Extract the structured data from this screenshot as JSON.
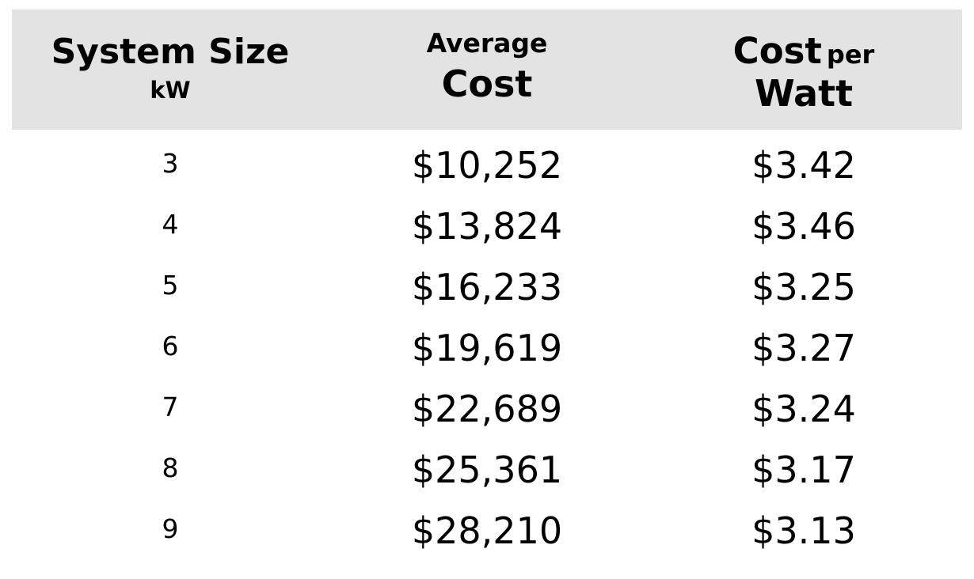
{
  "chart_data": {
    "type": "table",
    "columns": [
      {
        "title": "System Size",
        "subtitle": "kW"
      },
      {
        "title": "Average",
        "subtitle": "Cost"
      },
      {
        "title": "Cost",
        "title_suffix": "per",
        "subtitle": "Watt"
      }
    ],
    "rows": [
      {
        "size": "3",
        "avg_cost": "$10,252",
        "cost_per_watt": "$3.42"
      },
      {
        "size": "4",
        "avg_cost": "$13,824",
        "cost_per_watt": "$3.46"
      },
      {
        "size": "5",
        "avg_cost": "$16,233",
        "cost_per_watt": "$3.25"
      },
      {
        "size": "6",
        "avg_cost": "$19,619",
        "cost_per_watt": "$3.27"
      },
      {
        "size": "7",
        "avg_cost": "$22,689",
        "cost_per_watt": "$3.24"
      },
      {
        "size": "8",
        "avg_cost": "$25,361",
        "cost_per_watt": "$3.17"
      },
      {
        "size": "9",
        "avg_cost": "$28,210",
        "cost_per_watt": "$3.13"
      }
    ],
    "header_background": "#e3e3e3"
  }
}
